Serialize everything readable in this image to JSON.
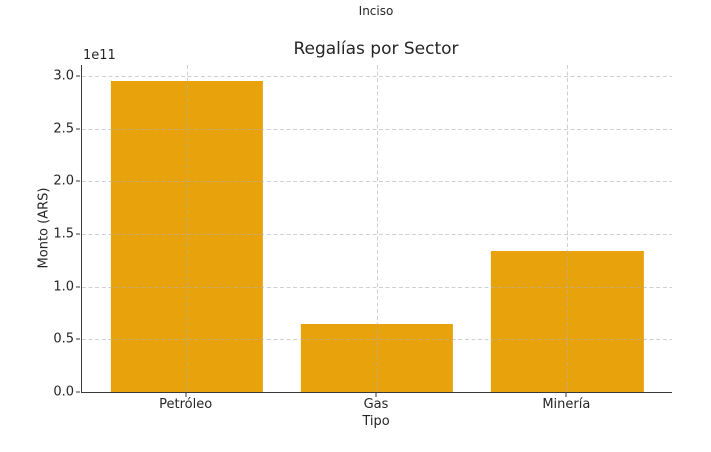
{
  "figure": {
    "suptitle": "Inciso",
    "title": "Regalías por Sector",
    "xlabel": "Tipo",
    "ylabel": "Monto (ARS)",
    "offset_text": "1e11"
  },
  "chart_data": {
    "type": "bar",
    "title": "Regalías por Sector",
    "subtitle": "Inciso",
    "xlabel": "Tipo",
    "ylabel": "Monto (ARS)",
    "categories": [
      "Petróleo",
      "Gas",
      "Minería"
    ],
    "values": [
      295000000000,
      65000000000,
      134000000000
    ],
    "bar_width": 0.8,
    "xlim": [
      -0.55,
      2.55
    ],
    "ylim": [
      0,
      310500000000
    ],
    "yticks": [
      0,
      50000000000,
      100000000000,
      150000000000,
      200000000000,
      250000000000,
      300000000000
    ],
    "ytick_labels": [
      "0.0",
      "0.5",
      "1.0",
      "1.5",
      "2.0",
      "2.5",
      "3.0"
    ],
    "offset_text": "1e11",
    "grid": true,
    "grid_style": "dashed",
    "legend_position": "none"
  },
  "colors": {
    "bar": "#E8A30C",
    "grid": "#b0b0b0",
    "spine": "#3a3a3a",
    "text": "#262626",
    "background": "#ffffff"
  }
}
